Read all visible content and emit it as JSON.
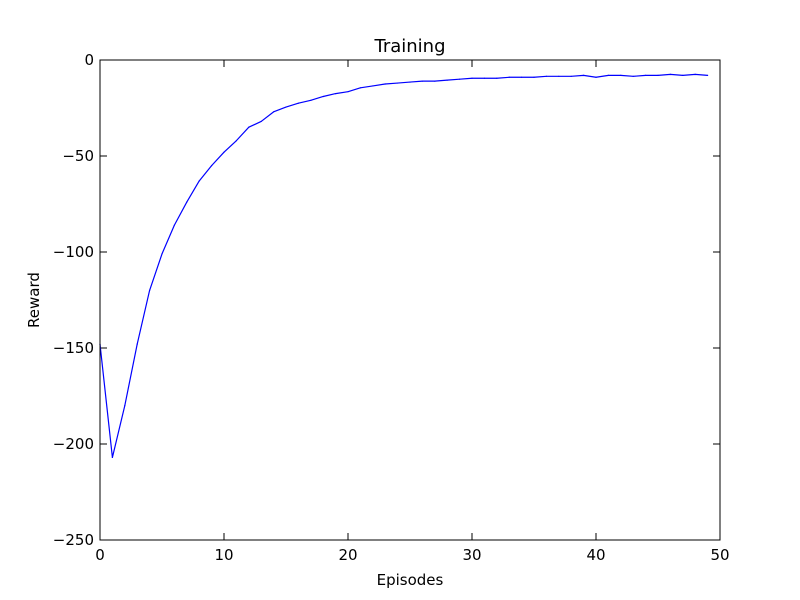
{
  "chart_data": {
    "type": "line",
    "title": "Training",
    "xlabel": "Episodes",
    "ylabel": "Reward",
    "xlim": [
      0,
      50
    ],
    "ylim": [
      -250,
      0
    ],
    "xticks": [
      0,
      10,
      20,
      30,
      40,
      50
    ],
    "yticks": [
      0,
      -50,
      -100,
      -150,
      -200,
      -250
    ],
    "grid": false,
    "series": [
      {
        "name": "Reward",
        "color": "#0000ff",
        "x": [
          0,
          1,
          2,
          3,
          4,
          5,
          6,
          7,
          8,
          9,
          10,
          11,
          12,
          13,
          14,
          15,
          16,
          17,
          18,
          19,
          20,
          21,
          22,
          23,
          24,
          25,
          26,
          27,
          28,
          29,
          30,
          31,
          32,
          33,
          34,
          35,
          36,
          37,
          38,
          39,
          40,
          41,
          42,
          43,
          44,
          45,
          46,
          47,
          48,
          49
        ],
        "values": [
          -148,
          -207,
          -180,
          -148,
          -120,
          -101,
          -86,
          -74,
          -63,
          -55,
          -48,
          -42,
          -35,
          -32,
          -27,
          -24.5,
          -22.5,
          -21,
          -19,
          -17.5,
          -16.5,
          -14.5,
          -13.5,
          -12.5,
          -12,
          -11.5,
          -11,
          -11,
          -10.5,
          -10,
          -9.5,
          -9.5,
          -9.5,
          -9,
          -9,
          -9,
          -8.5,
          -8.5,
          -8.5,
          -8,
          -9,
          -8,
          -8,
          -8.5,
          -8,
          -8,
          -7.5,
          -8,
          -7.5,
          -8
        ]
      }
    ]
  }
}
